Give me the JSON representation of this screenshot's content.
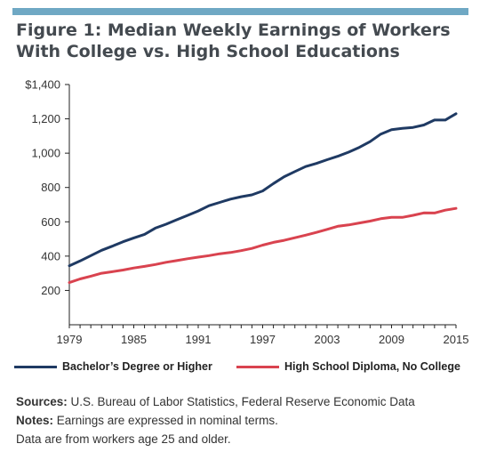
{
  "header": {
    "title_line1": "Figure 1: Median Weekly Earnings of Workers",
    "title_line2": "With College vs. High School Educations"
  },
  "colors": {
    "accent_bar": "#6fa8c4",
    "bachelor": "#1f3a63",
    "high_school": "#d9434f"
  },
  "chart_data": {
    "type": "line",
    "title": "Figure 1: Median Weekly Earnings of Workers With College vs. High School Educations",
    "xlabel": "",
    "ylabel": "",
    "xlim": [
      1979,
      2015
    ],
    "ylim": [
      0,
      1400
    ],
    "x_ticks": [
      "1979",
      "1985",
      "1991",
      "1997",
      "2003",
      "2009",
      "2015"
    ],
    "y_ticks": [
      "200",
      "400",
      "600",
      "800",
      "1,000",
      "1,200",
      "$1,400"
    ],
    "y_tick_values": [
      200,
      400,
      600,
      800,
      1000,
      1200,
      1400
    ],
    "grid": false,
    "legend_position": "bottom",
    "x": [
      1979,
      1980,
      1981,
      1982,
      1983,
      1984,
      1985,
      1986,
      1987,
      1988,
      1989,
      1990,
      1991,
      1992,
      1993,
      1994,
      1995,
      1996,
      1997,
      1998,
      1999,
      2000,
      2001,
      2002,
      2003,
      2004,
      2005,
      2006,
      2007,
      2008,
      2009,
      2010,
      2011,
      2012,
      2013,
      2014,
      2015
    ],
    "series": [
      {
        "name": "Bachelor’s Degree or Higher",
        "values": [
          344,
          372,
          403,
          434,
          458,
          484,
          506,
          527,
          563,
          586,
          612,
          637,
          663,
          694,
          713,
          732,
          746,
          757,
          780,
          823,
          863,
          893,
          922,
          940,
          962,
          982,
          1006,
          1034,
          1067,
          1111,
          1137,
          1145,
          1150,
          1164,
          1193,
          1193,
          1230
        ]
      },
      {
        "name": "High School Diploma, No College",
        "values": [
          246,
          267,
          283,
          300,
          309,
          319,
          331,
          340,
          351,
          364,
          374,
          385,
          394,
          403,
          414,
          421,
          432,
          445,
          464,
          480,
          492,
          507,
          522,
          538,
          556,
          574,
          582,
          593,
          604,
          618,
          626,
          626,
          638,
          652,
          651,
          668,
          678
        ]
      }
    ]
  },
  "legend": {
    "bachelor_label": "Bachelor’s Degree or Higher",
    "high_school_label": "High School Diploma, No College"
  },
  "footer": {
    "sources_label": "Sources:",
    "sources_text": " U.S. Bureau of Labor Statistics, Federal Reserve Economic Data",
    "notes_label": "Notes:",
    "notes_text": " Earnings are expressed in nominal terms.",
    "notes_text2": "Data are from workers age 25 and older."
  }
}
